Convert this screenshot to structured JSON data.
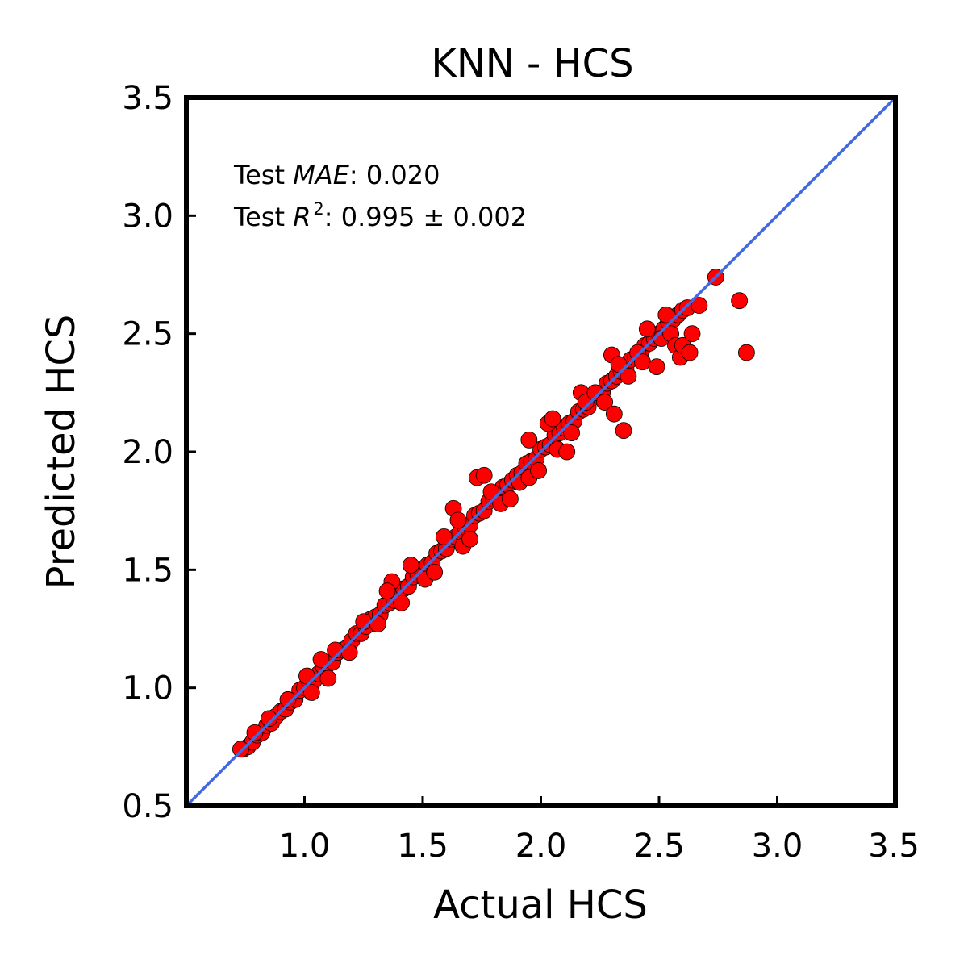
{
  "chart_data": {
    "type": "scatter",
    "title": "KNN - HCS",
    "xlabel": "Actual HCS",
    "ylabel": "Predicted HCS",
    "xlim": [
      0.5,
      3.5
    ],
    "ylim": [
      0.5,
      3.5
    ],
    "xticks": [
      "1.0",
      "1.5",
      "2.0",
      "2.5",
      "3.0",
      "3.5"
    ],
    "yticks": [
      "0.5",
      "1.0",
      "1.5",
      "2.0",
      "2.5",
      "3.0",
      "3.5"
    ],
    "grid": false,
    "annotations": {
      "mae_prefix": "Test ",
      "mae_symbol": "MAE",
      "mae_value": ": 0.020",
      "r2_prefix": "Test ",
      "r2_symbol": "R",
      "r2_exponent": "2",
      "r2_value": ": 0.995 ± 0.002"
    },
    "reference_line": {
      "from": [
        0.5,
        0.5
      ],
      "to": [
        3.5,
        3.5
      ],
      "color": "#4169e1"
    },
    "marker_color": "#ff0000",
    "marker_edge_color": "#000000",
    "points": [
      [
        0.74,
        0.74
      ],
      [
        0.76,
        0.75
      ],
      [
        0.78,
        0.77
      ],
      [
        0.8,
        0.8
      ],
      [
        0.82,
        0.81
      ],
      [
        0.84,
        0.84
      ],
      [
        0.86,
        0.85
      ],
      [
        0.88,
        0.88
      ],
      [
        0.9,
        0.9
      ],
      [
        0.92,
        0.91
      ],
      [
        0.94,
        0.94
      ],
      [
        0.96,
        0.95
      ],
      [
        0.98,
        0.99
      ],
      [
        1.0,
        1.0
      ],
      [
        1.02,
        1.03
      ],
      [
        1.04,
        1.03
      ],
      [
        1.06,
        1.06
      ],
      [
        1.08,
        1.09
      ],
      [
        1.1,
        1.1
      ],
      [
        1.12,
        1.11
      ],
      [
        1.14,
        1.15
      ],
      [
        1.16,
        1.16
      ],
      [
        1.18,
        1.17
      ],
      [
        1.2,
        1.2
      ],
      [
        1.22,
        1.23
      ],
      [
        1.24,
        1.23
      ],
      [
        1.26,
        1.26
      ],
      [
        1.28,
        1.29
      ],
      [
        1.3,
        1.3
      ],
      [
        1.32,
        1.31
      ],
      [
        1.34,
        1.35
      ],
      [
        1.36,
        1.36
      ],
      [
        1.38,
        1.37
      ],
      [
        1.4,
        1.41
      ],
      [
        1.42,
        1.42
      ],
      [
        1.44,
        1.43
      ],
      [
        1.46,
        1.47
      ],
      [
        1.48,
        1.48
      ],
      [
        1.5,
        1.5
      ],
      [
        1.52,
        1.52
      ],
      [
        1.54,
        1.53
      ],
      [
        1.56,
        1.57
      ],
      [
        1.58,
        1.58
      ],
      [
        1.6,
        1.59
      ],
      [
        1.62,
        1.63
      ],
      [
        1.64,
        1.64
      ],
      [
        1.66,
        1.66
      ],
      [
        1.68,
        1.68
      ],
      [
        1.7,
        1.69
      ],
      [
        1.72,
        1.73
      ],
      [
        1.74,
        1.74
      ],
      [
        1.76,
        1.75
      ],
      [
        1.78,
        1.79
      ],
      [
        1.8,
        1.8
      ],
      [
        1.82,
        1.81
      ],
      [
        1.84,
        1.85
      ],
      [
        1.86,
        1.86
      ],
      [
        1.88,
        1.88
      ],
      [
        1.9,
        1.9
      ],
      [
        1.92,
        1.91
      ],
      [
        1.94,
        1.95
      ],
      [
        1.96,
        1.96
      ],
      [
        1.98,
        1.97
      ],
      [
        2.0,
        2.01
      ],
      [
        2.02,
        2.02
      ],
      [
        2.04,
        2.03
      ],
      [
        2.06,
        2.07
      ],
      [
        2.08,
        2.08
      ],
      [
        2.1,
        2.1
      ],
      [
        2.12,
        2.12
      ],
      [
        2.14,
        2.13
      ],
      [
        2.16,
        2.17
      ],
      [
        2.18,
        2.18
      ],
      [
        2.2,
        2.19
      ],
      [
        2.22,
        2.23
      ],
      [
        2.24,
        2.24
      ],
      [
        2.26,
        2.25
      ],
      [
        2.28,
        2.29
      ],
      [
        2.3,
        2.3
      ],
      [
        2.32,
        2.32
      ],
      [
        2.34,
        2.34
      ],
      [
        2.36,
        2.35
      ],
      [
        2.38,
        2.39
      ],
      [
        2.4,
        2.4
      ],
      [
        2.42,
        2.41
      ],
      [
        2.44,
        2.45
      ],
      [
        2.46,
        2.46
      ],
      [
        2.48,
        2.48
      ],
      [
        2.5,
        2.5
      ],
      [
        2.52,
        2.52
      ],
      [
        2.54,
        2.55
      ],
      [
        2.56,
        2.56
      ],
      [
        2.58,
        2.58
      ],
      [
        2.6,
        2.6
      ],
      [
        2.62,
        2.61
      ],
      [
        0.73,
        0.74
      ],
      [
        0.79,
        0.81
      ],
      [
        0.85,
        0.87
      ],
      [
        0.93,
        0.95
      ],
      [
        1.01,
        1.05
      ],
      [
        1.07,
        1.12
      ],
      [
        1.03,
        0.98
      ],
      [
        1.1,
        1.04
      ],
      [
        1.13,
        1.16
      ],
      [
        1.19,
        1.15
      ],
      [
        1.25,
        1.28
      ],
      [
        1.31,
        1.27
      ],
      [
        1.37,
        1.45
      ],
      [
        1.35,
        1.41
      ],
      [
        1.41,
        1.36
      ],
      [
        1.45,
        1.52
      ],
      [
        1.51,
        1.46
      ],
      [
        1.55,
        1.49
      ],
      [
        1.59,
        1.64
      ],
      [
        1.63,
        1.76
      ],
      [
        1.65,
        1.71
      ],
      [
        1.67,
        1.6
      ],
      [
        1.7,
        1.63
      ],
      [
        1.73,
        1.89
      ],
      [
        1.76,
        1.9
      ],
      [
        1.79,
        1.83
      ],
      [
        1.83,
        1.78
      ],
      [
        1.87,
        1.8
      ],
      [
        1.91,
        1.87
      ],
      [
        1.95,
        1.89
      ],
      [
        1.95,
        2.05
      ],
      [
        1.99,
        1.92
      ],
      [
        2.03,
        2.12
      ],
      [
        2.05,
        2.14
      ],
      [
        2.07,
        2.01
      ],
      [
        2.11,
        2.0
      ],
      [
        2.13,
        2.08
      ],
      [
        2.17,
        2.25
      ],
      [
        2.19,
        2.21
      ],
      [
        2.23,
        2.25
      ],
      [
        2.27,
        2.21
      ],
      [
        2.3,
        2.41
      ],
      [
        2.31,
        2.16
      ],
      [
        2.35,
        2.09
      ],
      [
        2.33,
        2.37
      ],
      [
        2.37,
        2.32
      ],
      [
        2.41,
        2.42
      ],
      [
        2.43,
        2.38
      ],
      [
        2.45,
        2.52
      ],
      [
        2.49,
        2.36
      ],
      [
        2.51,
        2.48
      ],
      [
        2.53,
        2.58
      ],
      [
        2.55,
        2.5
      ],
      [
        2.57,
        2.45
      ],
      [
        2.59,
        2.4
      ],
      [
        2.6,
        2.45
      ],
      [
        2.63,
        2.42
      ],
      [
        2.64,
        2.5
      ],
      [
        2.67,
        2.62
      ],
      [
        2.74,
        2.74
      ],
      [
        2.84,
        2.64
      ],
      [
        2.87,
        2.42
      ]
    ]
  }
}
